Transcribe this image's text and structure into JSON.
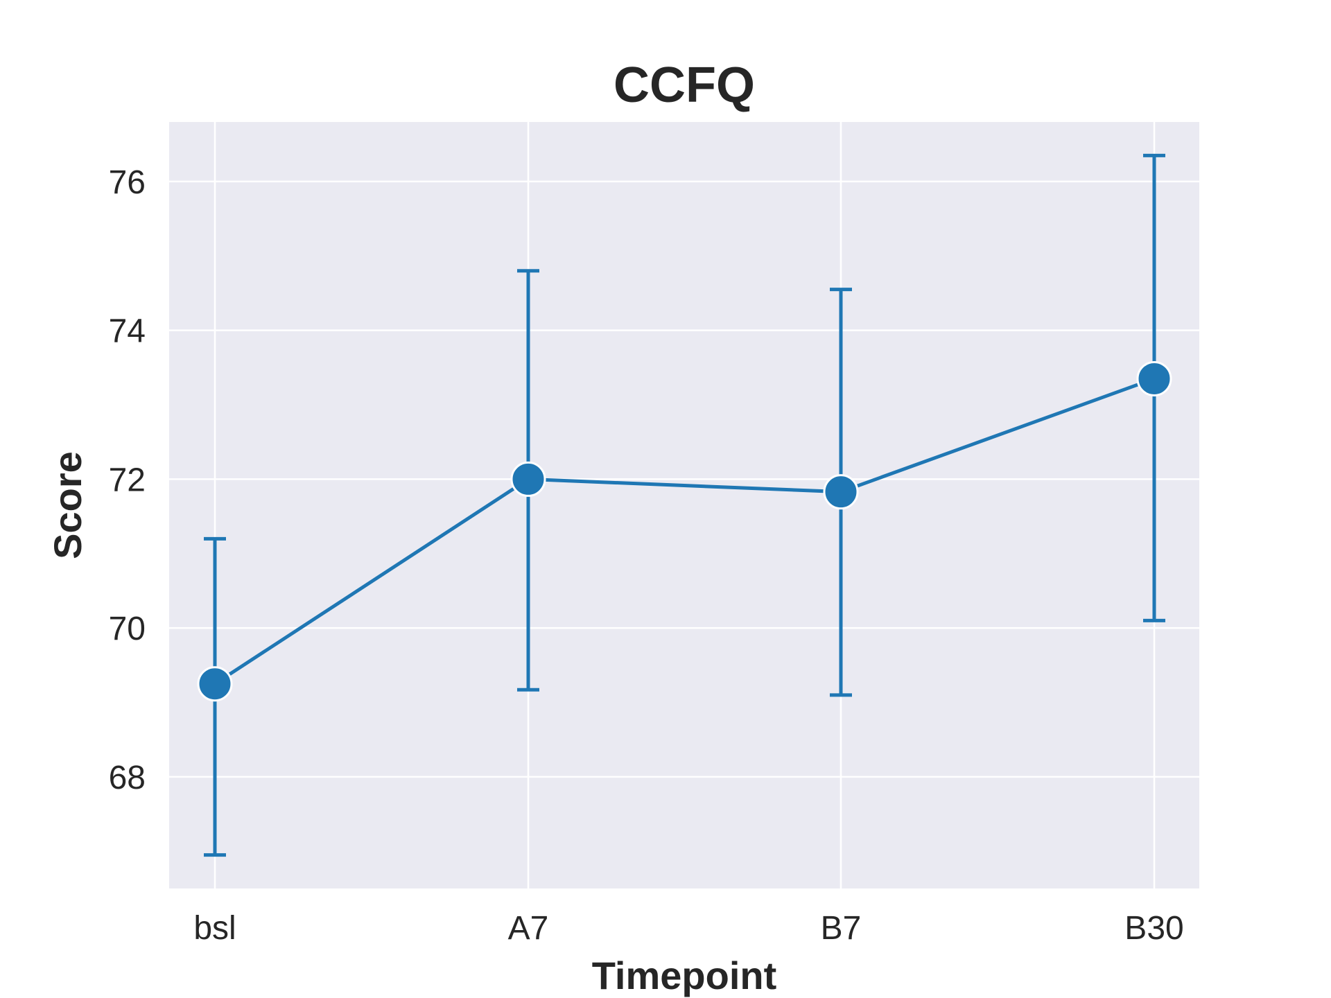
{
  "chart_data": {
    "type": "line",
    "title": "CCFQ",
    "xlabel": "Timepoint",
    "ylabel": "Score",
    "categories": [
      "bsl",
      "A7",
      "B7",
      "B30"
    ],
    "series": [
      {
        "values": [
          69.25,
          72.0,
          71.83,
          73.35
        ],
        "error_low": [
          66.95,
          69.17,
          69.1,
          70.1
        ],
        "error_high": [
          71.2,
          74.8,
          74.55,
          76.35
        ],
        "color": "#1f77b4"
      }
    ],
    "ylim": [
      66.5,
      76.8
    ],
    "yticks": [
      68,
      70,
      72,
      74,
      76
    ],
    "grid": true,
    "background": "#eaeaf2",
    "grid_color": "#ffffff"
  }
}
